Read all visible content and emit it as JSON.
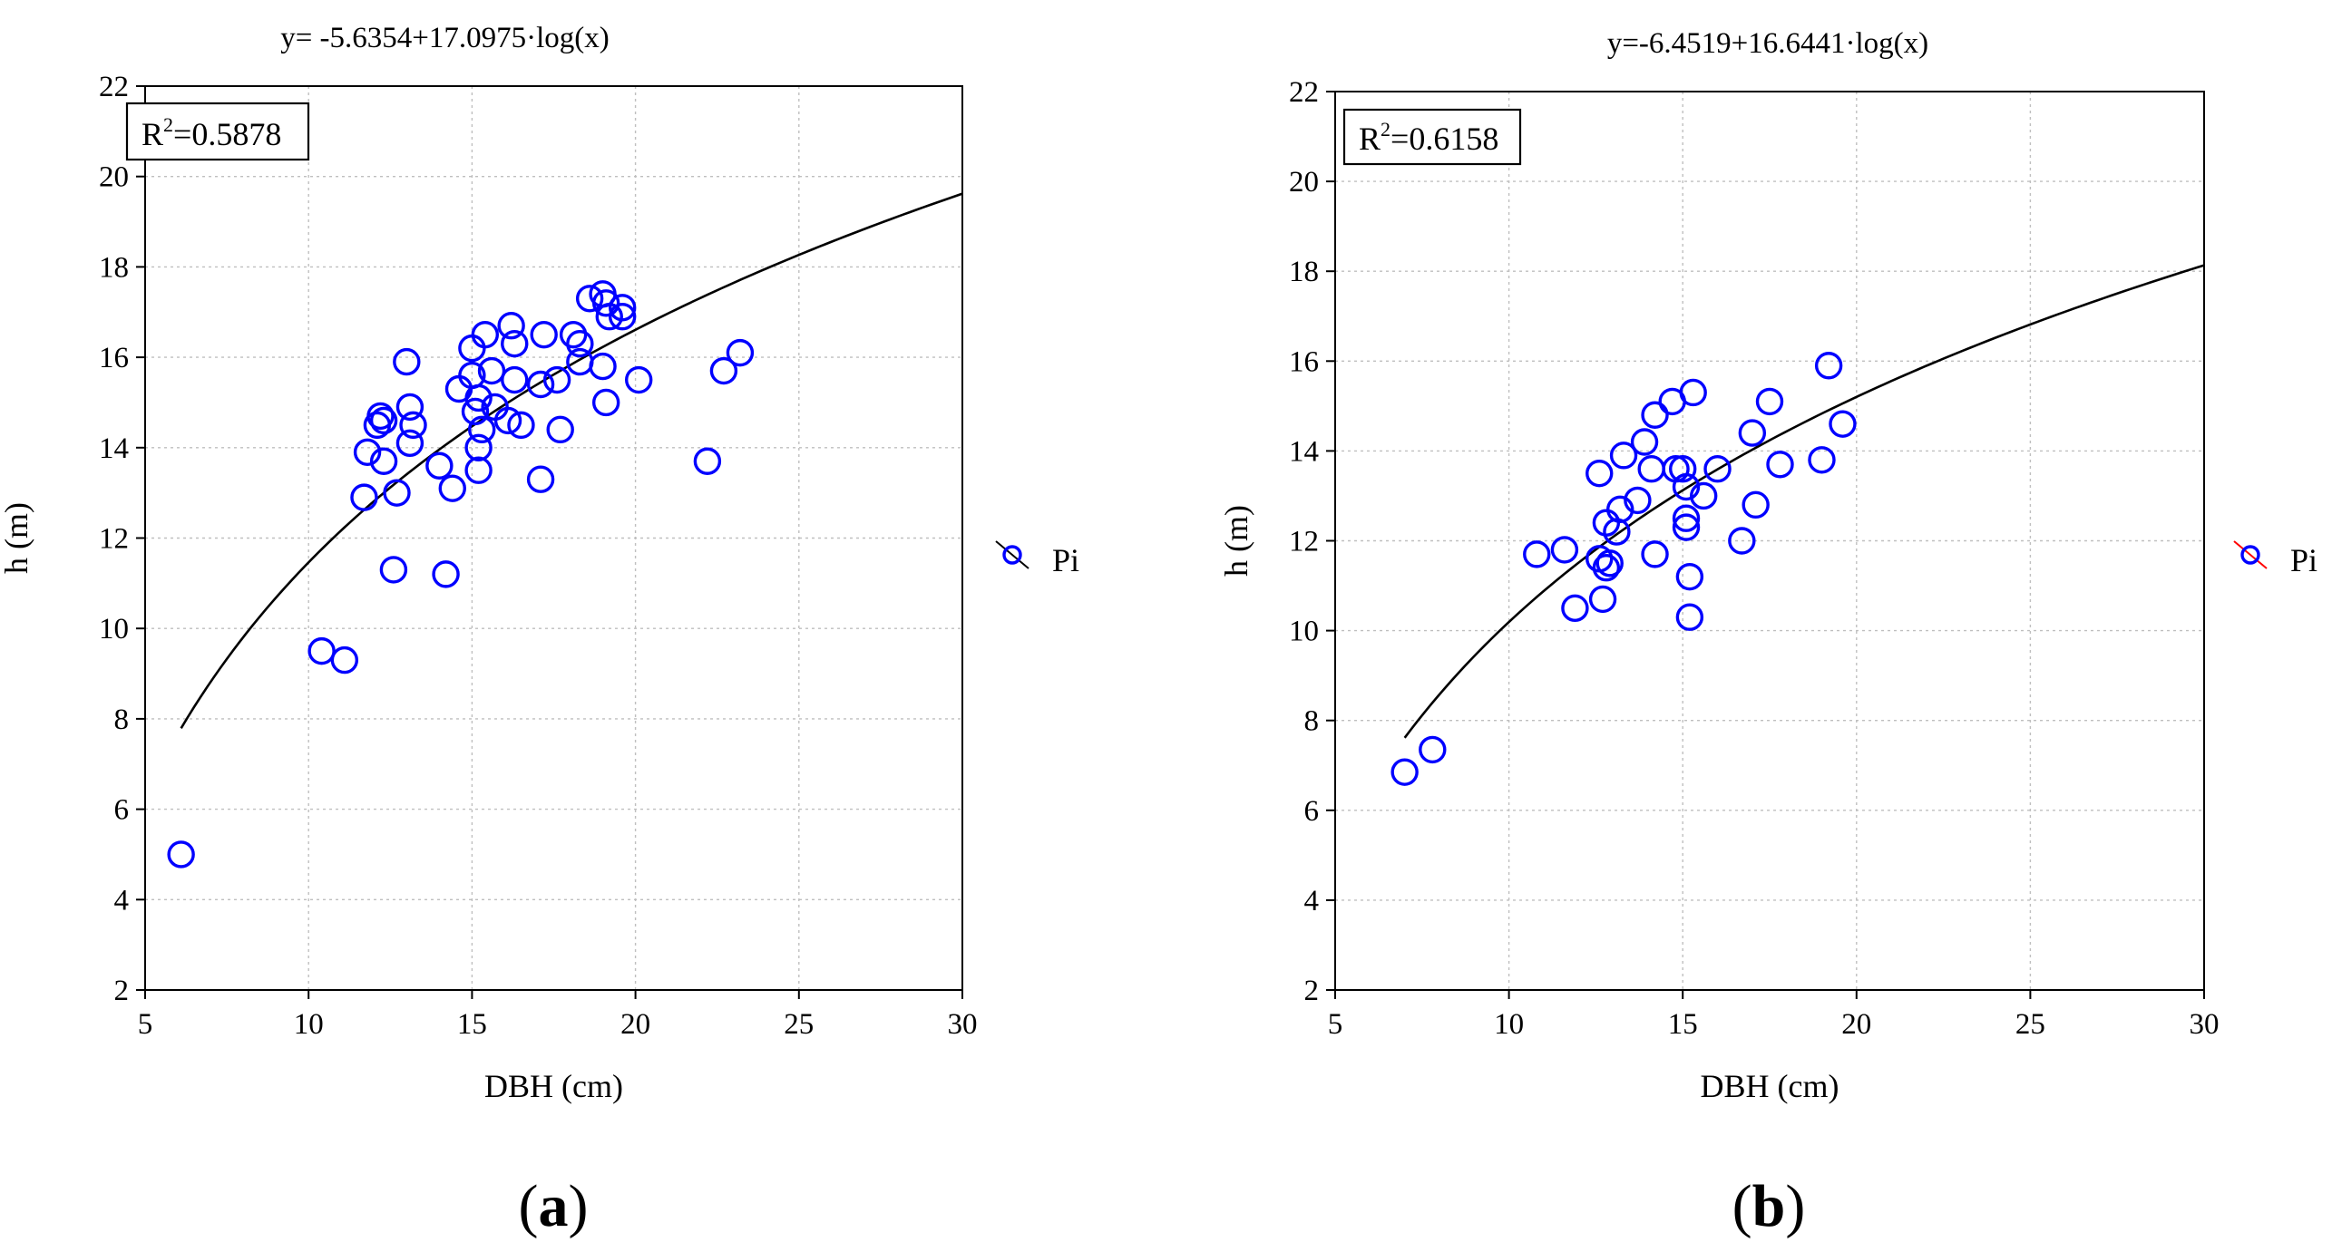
{
  "chart_data": [
    {
      "type": "scatter",
      "panel_label": {
        "open": "(",
        "letter": "a",
        "close": ")"
      },
      "title": "y= -5.6354+17.0975·log(x)",
      "xlabel": "DBH (cm)",
      "ylabel": "h (m)",
      "xlim": [
        5,
        30
      ],
      "ylim": [
        2,
        22
      ],
      "xticks": [
        "5",
        "10",
        "15",
        "20",
        "25",
        "30"
      ],
      "yticks": [
        "2",
        "4",
        "6",
        "8",
        "10",
        "12",
        "14",
        "16",
        "18",
        "20",
        "22"
      ],
      "grid": true,
      "r2": {
        "prefix": "R",
        "sup": "2",
        "value": "=0.5878"
      },
      "legend": {
        "label": "Pi",
        "position": "right"
      },
      "fit": {
        "intercept": -5.6354,
        "slope": 17.0975,
        "x_start": 6.1,
        "x_end": 30
      },
      "series": [
        {
          "name": "Pi",
          "color": "#0000ff",
          "points": [
            [
              6.1,
              5.0
            ],
            [
              10.4,
              9.5
            ],
            [
              11.1,
              9.3
            ],
            [
              11.7,
              12.9
            ],
            [
              11.8,
              13.9
            ],
            [
              12.1,
              14.5
            ],
            [
              12.2,
              14.7
            ],
            [
              12.3,
              14.6
            ],
            [
              12.3,
              13.7
            ],
            [
              12.6,
              11.3
            ],
            [
              12.7,
              13.0
            ],
            [
              13.0,
              15.9
            ],
            [
              13.1,
              14.9
            ],
            [
              13.2,
              14.5
            ],
            [
              13.1,
              14.1
            ],
            [
              14.0,
              13.6
            ],
            [
              14.4,
              13.1
            ],
            [
              14.6,
              15.3
            ],
            [
              14.2,
              11.2
            ],
            [
              15.0,
              16.2
            ],
            [
              15.0,
              15.6
            ],
            [
              15.1,
              14.8
            ],
            [
              15.2,
              15.1
            ],
            [
              15.2,
              14.0
            ],
            [
              15.2,
              13.5
            ],
            [
              15.3,
              14.4
            ],
            [
              15.4,
              16.5
            ],
            [
              15.6,
              15.7
            ],
            [
              15.7,
              14.9
            ],
            [
              16.1,
              14.6
            ],
            [
              16.2,
              16.7
            ],
            [
              16.3,
              16.3
            ],
            [
              16.3,
              15.5
            ],
            [
              16.5,
              14.5
            ],
            [
              17.1,
              15.4
            ],
            [
              17.2,
              16.5
            ],
            [
              17.1,
              13.3
            ],
            [
              17.6,
              15.5
            ],
            [
              17.7,
              14.4
            ],
            [
              18.1,
              16.5
            ],
            [
              18.3,
              15.9
            ],
            [
              18.3,
              16.3
            ],
            [
              18.6,
              17.3
            ],
            [
              19.0,
              17.4
            ],
            [
              19.1,
              17.2
            ],
            [
              19.0,
              15.8
            ],
            [
              19.1,
              15.0
            ],
            [
              19.2,
              16.9
            ],
            [
              19.6,
              16.9
            ],
            [
              19.6,
              17.1
            ],
            [
              20.1,
              15.5
            ],
            [
              22.2,
              13.7
            ],
            [
              22.7,
              15.7
            ],
            [
              23.2,
              16.1
            ]
          ]
        }
      ]
    },
    {
      "type": "scatter",
      "panel_label": {
        "open": "(",
        "letter": "b",
        "close": ")"
      },
      "title": "y=-6.4519+16.6441·log(x)",
      "xlabel": "DBH (cm)",
      "ylabel": "h (m)",
      "xlim": [
        5,
        30
      ],
      "ylim": [
        2,
        22
      ],
      "xticks": [
        "5",
        "10",
        "15",
        "20",
        "25",
        "30"
      ],
      "yticks": [
        "2",
        "4",
        "6",
        "8",
        "10",
        "12",
        "14",
        "16",
        "18",
        "20",
        "22"
      ],
      "grid": true,
      "r2": {
        "prefix": "R",
        "sup": "2",
        "value": "=0.6158"
      },
      "legend": {
        "label": "Pi",
        "position": "right"
      },
      "fit": {
        "intercept": -6.4519,
        "slope": 16.6441,
        "x_start": 7.0,
        "x_end": 30
      },
      "series": [
        {
          "name": "Pi",
          "color": "#0000ff",
          "points": [
            [
              7.0,
              6.85
            ],
            [
              7.8,
              7.35
            ],
            [
              10.8,
              11.7
            ],
            [
              11.6,
              11.8
            ],
            [
              11.9,
              10.5
            ],
            [
              12.6,
              13.5
            ],
            [
              12.6,
              11.6
            ],
            [
              12.7,
              10.7
            ],
            [
              12.8,
              12.4
            ],
            [
              12.8,
              11.4
            ],
            [
              12.9,
              11.5
            ],
            [
              13.1,
              12.2
            ],
            [
              13.2,
              12.7
            ],
            [
              13.3,
              13.9
            ],
            [
              13.7,
              12.9
            ],
            [
              13.9,
              14.2
            ],
            [
              14.1,
              13.6
            ],
            [
              14.2,
              14.8
            ],
            [
              14.2,
              11.7
            ],
            [
              14.7,
              15.1
            ],
            [
              14.8,
              13.6
            ],
            [
              15.0,
              13.6
            ],
            [
              15.1,
              13.2
            ],
            [
              15.1,
              12.5
            ],
            [
              15.1,
              12.3
            ],
            [
              15.2,
              11.2
            ],
            [
              15.2,
              10.3
            ],
            [
              15.3,
              15.3
            ],
            [
              15.6,
              13.0
            ],
            [
              16.0,
              13.6
            ],
            [
              16.7,
              12.0
            ],
            [
              17.0,
              14.4
            ],
            [
              17.1,
              12.8
            ],
            [
              17.5,
              15.1
            ],
            [
              17.8,
              13.7
            ],
            [
              19.0,
              13.8
            ],
            [
              19.2,
              15.9
            ],
            [
              19.6,
              14.6
            ]
          ]
        }
      ]
    }
  ]
}
